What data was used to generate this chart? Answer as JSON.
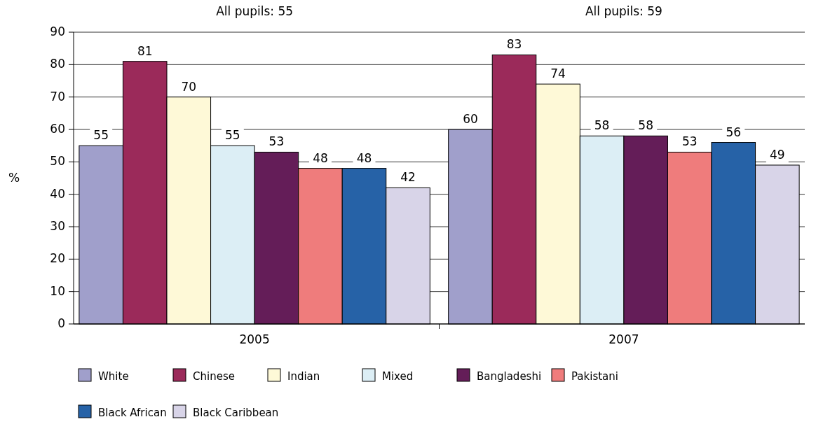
{
  "chart_data": {
    "type": "bar",
    "categories": [
      "2005",
      "2007"
    ],
    "series": [
      {
        "name": "White",
        "color": "#a09fcb",
        "values": [
          55,
          60
        ]
      },
      {
        "name": "Chinese",
        "color": "#9b2a5a",
        "values": [
          81,
          83
        ]
      },
      {
        "name": "Indian",
        "color": "#fef9d7",
        "values": [
          70,
          74
        ]
      },
      {
        "name": "Mixed",
        "color": "#dceef5",
        "values": [
          55,
          58
        ]
      },
      {
        "name": "Bangladeshi",
        "color": "#641d58",
        "values": [
          53,
          58
        ]
      },
      {
        "name": "Pakistani",
        "color": "#ef7c7c",
        "values": [
          48,
          53
        ]
      },
      {
        "name": "Black African",
        "color": "#2662a7",
        "values": [
          48,
          56
        ]
      },
      {
        "name": "Black Caribbean",
        "color": "#d8d4e8",
        "values": [
          42,
          49
        ]
      }
    ],
    "ylabel": "%",
    "ylim": [
      0,
      90
    ],
    "yticks": [
      0,
      10,
      20,
      30,
      40,
      50,
      60,
      70,
      80,
      90
    ],
    "grid": "y",
    "data_labels": true,
    "legend": "bottom",
    "annotations": [
      "All pupils: 55",
      "All pupils: 59"
    ]
  }
}
